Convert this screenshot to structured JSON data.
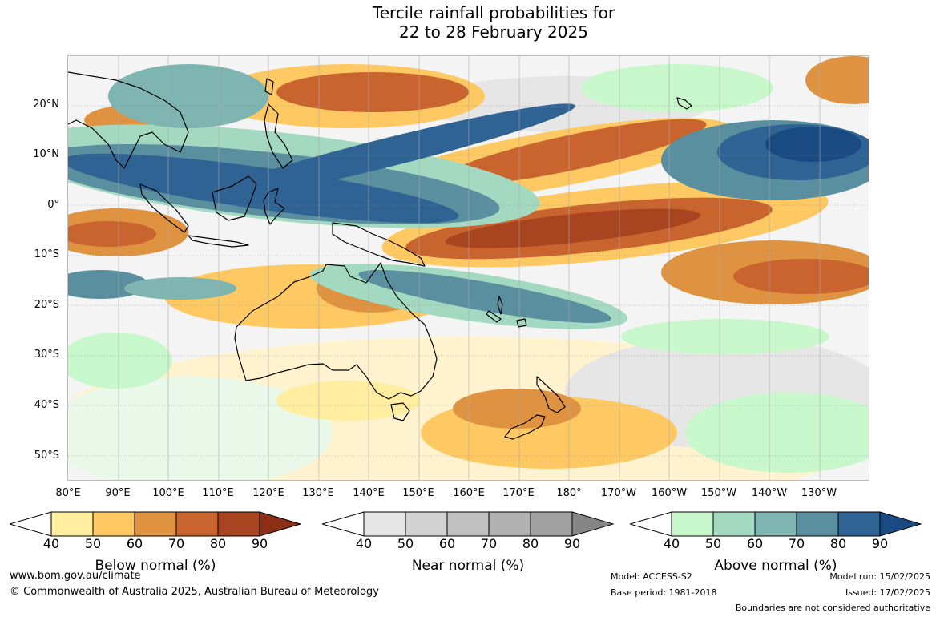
{
  "title": {
    "line1": "Tercile rainfall probabilities for",
    "line2": "22 to 28 February 2025"
  },
  "map": {
    "lat_labels": [
      "20°N",
      "10°N",
      "0°",
      "10°S",
      "20°S",
      "30°S",
      "40°S",
      "50°S"
    ],
    "lon_labels": [
      "80°E",
      "90°E",
      "100°E",
      "110°E",
      "120°E",
      "130°E",
      "140°E",
      "150°E",
      "160°E",
      "170°E",
      "180°",
      "170°W",
      "160°W",
      "150°W",
      "140°W",
      "130°W"
    ]
  },
  "legends": [
    {
      "title": "Below normal (%)",
      "ticks": [
        "40",
        "50",
        "60",
        "70",
        "80",
        "90"
      ],
      "colors": [
        "#ffeda0",
        "#fec863",
        "#df9240",
        "#c9642e",
        "#a8441f",
        "#8c2f16"
      ]
    },
    {
      "title": "Near normal (%)",
      "ticks": [
        "40",
        "50",
        "60",
        "70",
        "80",
        "90"
      ],
      "colors": [
        "#e6e6e6",
        "#d2d2d2",
        "#c0c0c0",
        "#b1b1b1",
        "#a2a2a2",
        "#858585"
      ]
    },
    {
      "title": "Above normal (%)",
      "ticks": [
        "40",
        "50",
        "60",
        "70",
        "80",
        "90"
      ],
      "colors": [
        "#c8f7cb",
        "#a4d9c1",
        "#7eb5b0",
        "#5a8fa0",
        "#2f6394",
        "#1a4a82"
      ]
    }
  ],
  "footer": {
    "website": "www.bom.gov.au/climate",
    "copyright": "© Commonwealth of Australia 2025, Australian Bureau of Meteorology",
    "model": "Model: ACCESS-S2",
    "base_period": "Base period: 1981-2018",
    "model_run": "Model run: 15/02/2025",
    "issued": "Issued: 17/02/2025",
    "disclaimer": "Boundaries are not considered authoritative"
  }
}
